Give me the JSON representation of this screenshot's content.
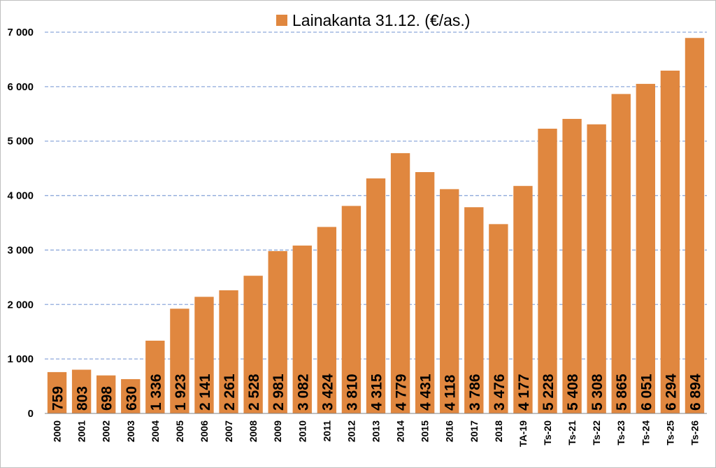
{
  "chart_data": {
    "type": "bar",
    "legend": "Lainakanta 31.12. (€/as.)",
    "legend_position": "top",
    "categories": [
      "2000",
      "2001",
      "2002",
      "2003",
      "2004",
      "2005",
      "2006",
      "2007",
      "2008",
      "2009",
      "2010",
      "2011",
      "2012",
      "2013",
      "2014",
      "2015",
      "2016",
      "2017",
      "2018",
      "TA-19",
      "Ts-20",
      "Ts-21",
      "Ts-22",
      "Ts-23",
      "Ts-24",
      "Ts-25",
      "Ts-26"
    ],
    "series": [
      {
        "name": "Lainakanta 31.12. (€/as.)",
        "values": [
          759,
          803,
          698,
          630,
          1336,
          1923,
          2141,
          2261,
          2528,
          2981,
          3082,
          3424,
          3810,
          4315,
          4779,
          4431,
          4118,
          3786,
          3476,
          4177,
          5228,
          5408,
          5308,
          5865,
          6051,
          6294,
          6894
        ],
        "data_labels": [
          "759",
          "803",
          "698",
          "630",
          "1 336",
          "1 923",
          "2 141",
          "2 261",
          "2 528",
          "2 981",
          "3 082",
          "3 424",
          "3 810",
          "4 315",
          "4 779",
          "4 431",
          "4 118",
          "3 786",
          "3 476",
          "4 177",
          "5 228",
          "5 408",
          "5 308",
          "5 865",
          "6 051",
          "6 294",
          "6 894"
        ],
        "color": "#E0873F"
      }
    ],
    "ylim": [
      0,
      7000
    ],
    "yticks": [
      0,
      1000,
      2000,
      3000,
      4000,
      5000,
      6000,
      7000
    ],
    "ytick_labels": [
      "0",
      "1 000",
      "2 000",
      "3 000",
      "4 000",
      "5 000",
      "6 000",
      "7 000"
    ],
    "grid": true,
    "grid_color": "#8EA9DB",
    "title": "",
    "xlabel": "",
    "ylabel": ""
  }
}
